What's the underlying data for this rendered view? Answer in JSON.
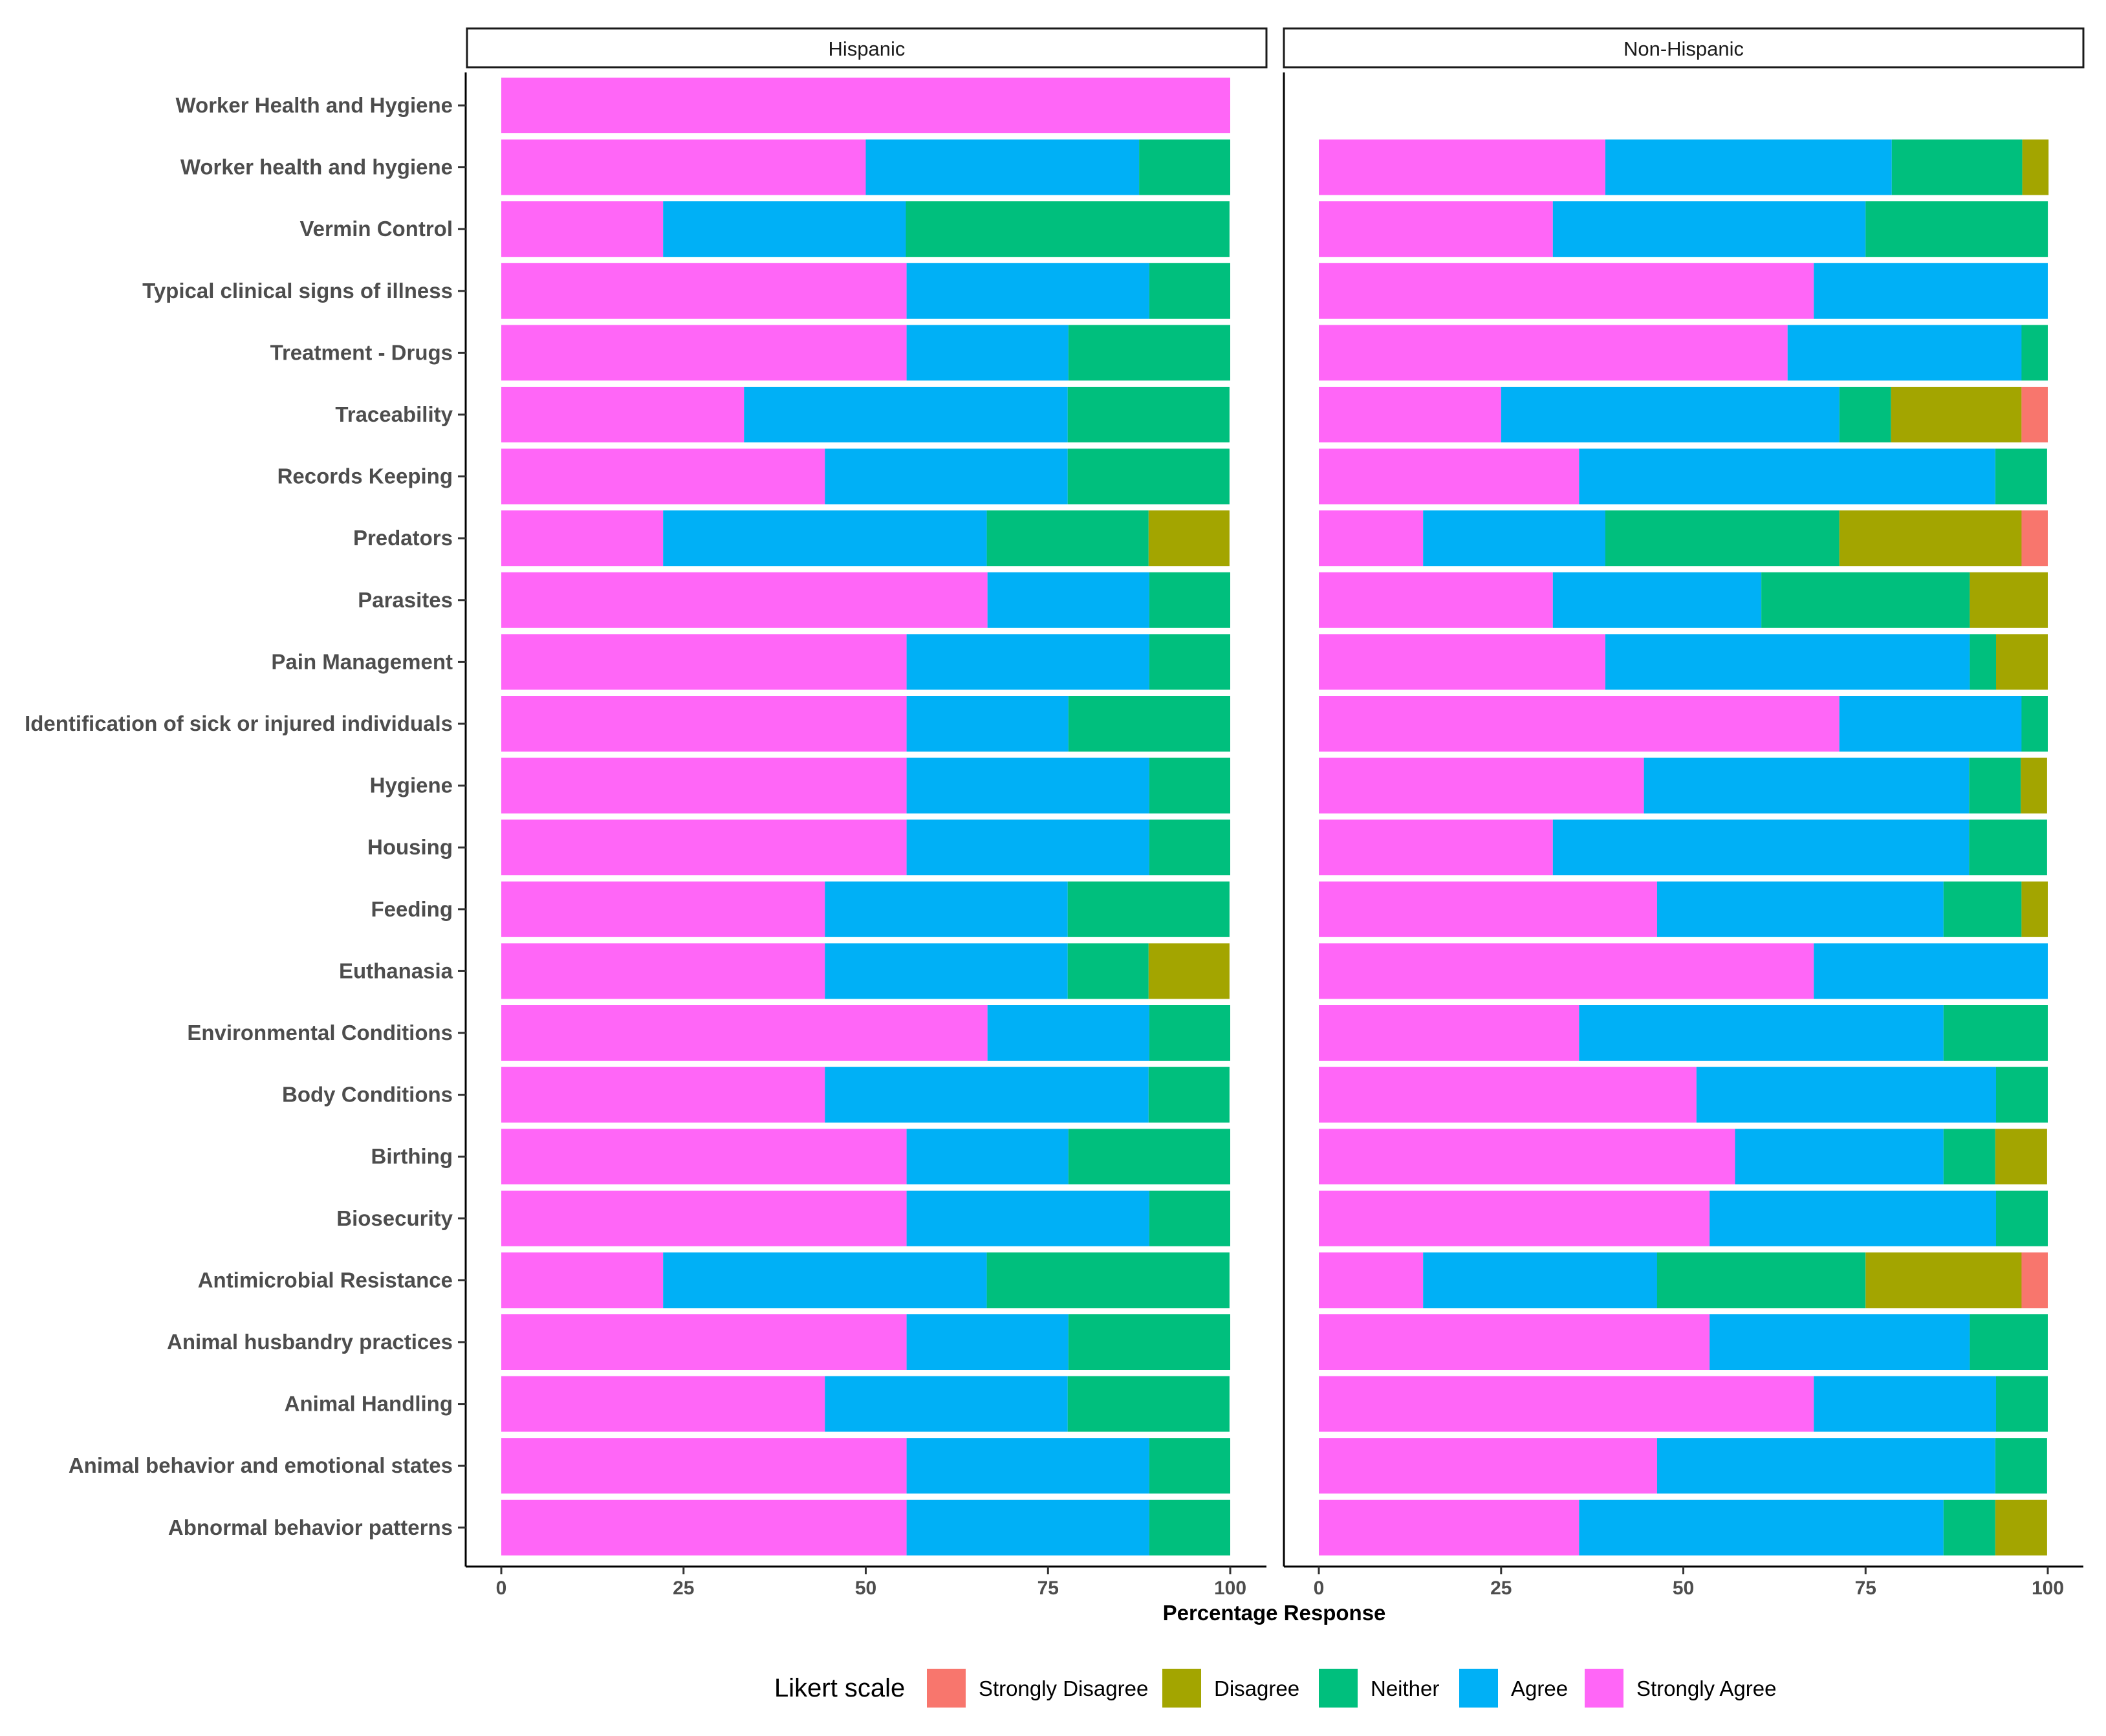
{
  "chart_data": {
    "type": "bar",
    "orientation": "horizontal",
    "stacked": true,
    "xlabel": "Percentage Response",
    "ylabel": "",
    "xlim": [
      0,
      100
    ],
    "xticks": [
      0,
      25,
      50,
      75,
      100
    ],
    "grid": false,
    "legend_title": "Likert scale",
    "legend_position": "bottom",
    "levels": [
      "Strongly Disagree",
      "Disagree",
      "Neither",
      "Agree",
      "Strongly Agree"
    ],
    "colors": {
      "Strongly Disagree": "#F8766D",
      "Disagree": "#A3A500",
      "Neither": "#00BF7D",
      "Agree": "#00B0F6",
      "Strongly Agree": "#FF66F7"
    },
    "categories": [
      "Worker Health and Hygiene",
      "Worker health and hygiene",
      "Vermin Control",
      "Typical clinical signs of illness",
      "Treatment - Drugs",
      "Traceability",
      "Records Keeping",
      "Predators",
      "Parasites",
      "Pain Management",
      "Identification of sick or injured individuals",
      "Hygiene",
      "Housing",
      "Feeding",
      "Euthanasia",
      "Environmental Conditions",
      "Body Conditions",
      "Birthing",
      "Biosecurity",
      "Antimicrobial Resistance",
      "Animal husbandry practices",
      "Animal Handling",
      "Animal behavior and emotional states",
      "Abnormal behavior patterns"
    ],
    "panels": [
      {
        "name": "Hispanic",
        "series": [
          {
            "name": "Strongly Disagree",
            "values": [
              0,
              0,
              0,
              0,
              0,
              0,
              0,
              0,
              0,
              0,
              0,
              0,
              0,
              0,
              0,
              0,
              0,
              0,
              0,
              0,
              0,
              0,
              0,
              0
            ]
          },
          {
            "name": "Disagree",
            "values": [
              0,
              0,
              0,
              0,
              0,
              0,
              0,
              11.1,
              0,
              0,
              0,
              0,
              0,
              0,
              11.1,
              0,
              0,
              0,
              0,
              0,
              0,
              0,
              0,
              0
            ]
          },
          {
            "name": "Neither",
            "values": [
              0,
              12.5,
              44.4,
              11.1,
              22.2,
              22.2,
              22.2,
              22.2,
              11.1,
              11.1,
              22.2,
              11.1,
              11.1,
              22.2,
              11.1,
              11.1,
              11.1,
              22.2,
              11.1,
              33.3,
              22.2,
              22.2,
              11.1,
              11.1
            ]
          },
          {
            "name": "Agree",
            "values": [
              0,
              37.5,
              33.3,
              33.3,
              22.2,
              44.4,
              33.3,
              44.4,
              22.2,
              33.3,
              22.2,
              33.3,
              33.3,
              33.3,
              33.3,
              22.2,
              44.4,
              22.2,
              33.3,
              44.4,
              22.2,
              33.3,
              33.3,
              33.3
            ]
          },
          {
            "name": "Strongly Agree",
            "values": [
              100,
              50,
              22.2,
              55.6,
              55.6,
              33.3,
              44.4,
              22.2,
              66.7,
              55.6,
              55.6,
              55.6,
              55.6,
              44.4,
              44.4,
              66.7,
              44.4,
              55.6,
              55.6,
              22.2,
              55.6,
              44.4,
              55.6,
              55.6
            ]
          }
        ]
      },
      {
        "name": "Non-Hispanic",
        "series": [
          {
            "name": "Strongly Disagree",
            "values": [
              null,
              0,
              0,
              0,
              0,
              3.6,
              0,
              3.6,
              0,
              0,
              0,
              0,
              0,
              0,
              0,
              0,
              0,
              0,
              0,
              3.6,
              0,
              0,
              0,
              0
            ]
          },
          {
            "name": "Disagree",
            "values": [
              null,
              3.6,
              0,
              0,
              0,
              17.9,
              0,
              25,
              10.7,
              7.1,
              0,
              3.6,
              0,
              3.6,
              0,
              0,
              0,
              7.1,
              0,
              21.4,
              0,
              0,
              0,
              7.1
            ]
          },
          {
            "name": "Neither",
            "values": [
              null,
              17.9,
              25,
              0,
              3.6,
              7.1,
              7.1,
              32.1,
              28.6,
              3.6,
              3.6,
              7.1,
              10.7,
              10.7,
              0,
              14.3,
              7.1,
              7.1,
              7.1,
              28.6,
              10.7,
              7.1,
              7.1,
              7.1
            ]
          },
          {
            "name": "Agree",
            "values": [
              null,
              39.3,
              42.9,
              32.1,
              32.1,
              46.4,
              57.1,
              25,
              28.6,
              50,
              25,
              44.6,
              57.1,
              39.3,
              32.1,
              50,
              41.1,
              28.6,
              39.3,
              32.1,
              35.7,
              25,
              46.4,
              50
            ]
          },
          {
            "name": "Strongly Agree",
            "values": [
              null,
              39.3,
              32.1,
              67.9,
              64.3,
              25,
              35.7,
              14.3,
              32.1,
              39.3,
              71.4,
              44.6,
              32.1,
              46.4,
              67.9,
              35.7,
              51.8,
              57.1,
              53.6,
              14.3,
              53.6,
              67.9,
              46.4,
              35.7
            ]
          }
        ]
      }
    ]
  }
}
